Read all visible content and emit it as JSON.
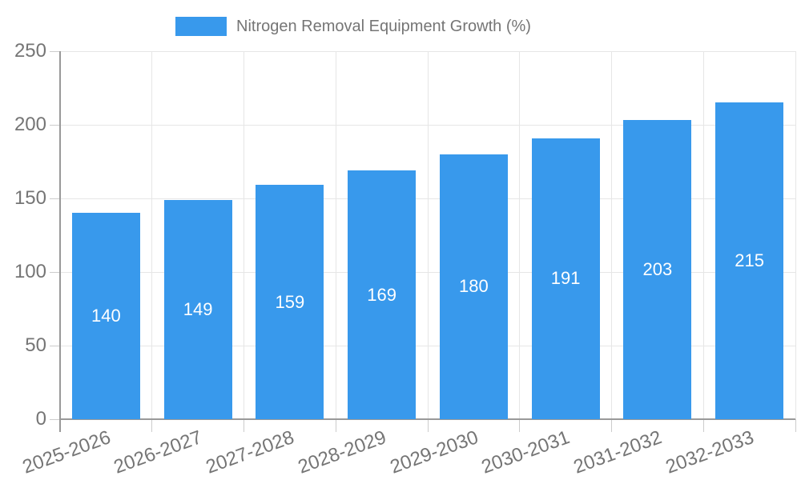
{
  "chart_data": {
    "type": "bar",
    "title": "Nitrogen Removal Equipment Growth (%)",
    "categories": [
      "2025-2026",
      "2026-2027",
      "2027-2028",
      "2028-2029",
      "2029-2030",
      "2030-2031",
      "2031-2032",
      "2032-2033"
    ],
    "values": [
      140,
      149,
      159,
      169,
      180,
      191,
      203,
      215
    ],
    "xlabel": "",
    "ylabel": "",
    "ylim": [
      0,
      250
    ],
    "yticks": [
      0,
      50,
      100,
      150,
      200,
      250
    ],
    "grid": true,
    "legend_position": "top",
    "colors": {
      "bar": "#3899EC",
      "bar_label": "#ffffff",
      "grid": "#e6e6e6",
      "axis": "#999999",
      "tick": "#cccccc",
      "text": "#757575"
    }
  }
}
